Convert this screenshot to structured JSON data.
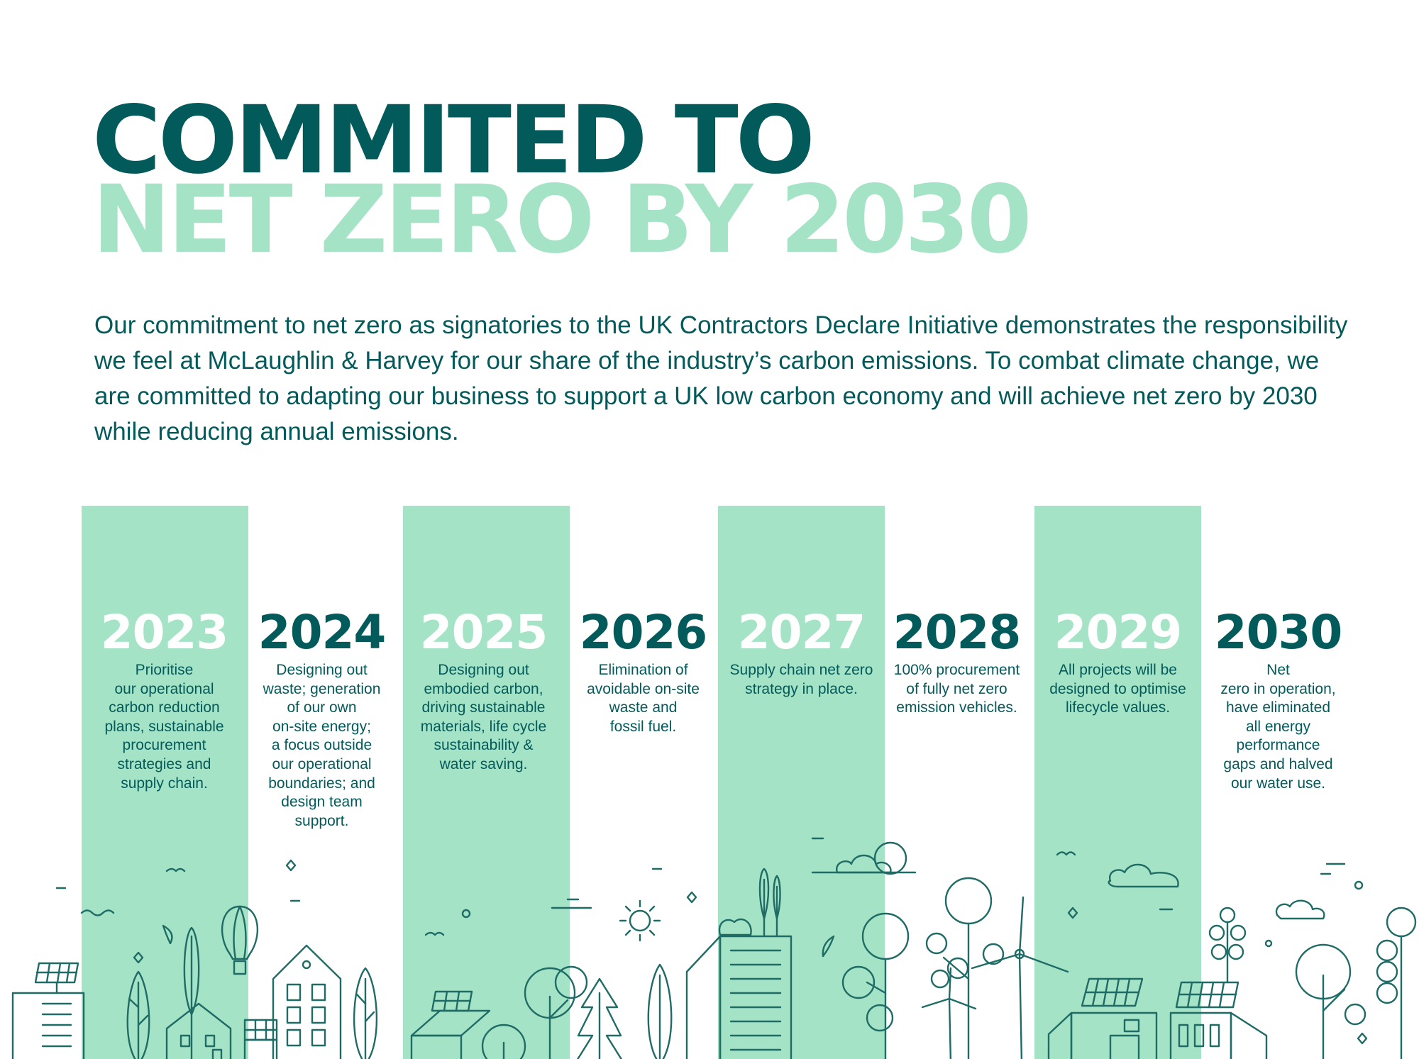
{
  "colors": {
    "dark": "#035a5b",
    "light": "#a4e3c6",
    "white": "#ffffff",
    "line": "#1f6b66"
  },
  "header": {
    "title_line1": "COMMITED TO",
    "title_line2": "NET ZERO BY 2030"
  },
  "intro": "Our commitment to net zero as signatories to the UK Contractors Declare Initiative demonstrates the responsibility we feel at McLaughlin & Harvey for our share of the industry’s carbon emissions. To combat climate change, we are committed to adapting our business to support a UK low carbon economy and will achieve net zero by 2030 while reducing annual emissions.",
  "timeline": [
    {
      "year": "2023",
      "highlighted": true,
      "text": "Prioritise\nour operational\ncarbon reduction\nplans, sustainable\nprocurement\nstrategies and\nsupply chain."
    },
    {
      "year": "2024",
      "highlighted": false,
      "text": "Designing out\nwaste; generation\nof our own\non-site energy;\na focus outside\nour operational\nboundaries; and\ndesign team\nsupport."
    },
    {
      "year": "2025",
      "highlighted": true,
      "text": "Designing out\nembodied carbon,\ndriving sustainable\nmaterials, life cycle\nsustainability &\nwater saving."
    },
    {
      "year": "2026",
      "highlighted": false,
      "text": "Elimination of\navoidable on-site\nwaste and\nfossil fuel."
    },
    {
      "year": "2027",
      "highlighted": true,
      "text": "Supply chain net zero\nstrategy in place."
    },
    {
      "year": "2028",
      "highlighted": false,
      "text": "100% procurement\nof fully net zero\nemission vehicles."
    },
    {
      "year": "2029",
      "highlighted": true,
      "text": "All projects will be\ndesigned to optimise\nlifecycle values."
    },
    {
      "year": "2030",
      "highlighted": false,
      "text": "Net\nzero in operation,\nhave eliminated\nall energy\nperformance\ngaps and halved\nour water use."
    }
  ]
}
